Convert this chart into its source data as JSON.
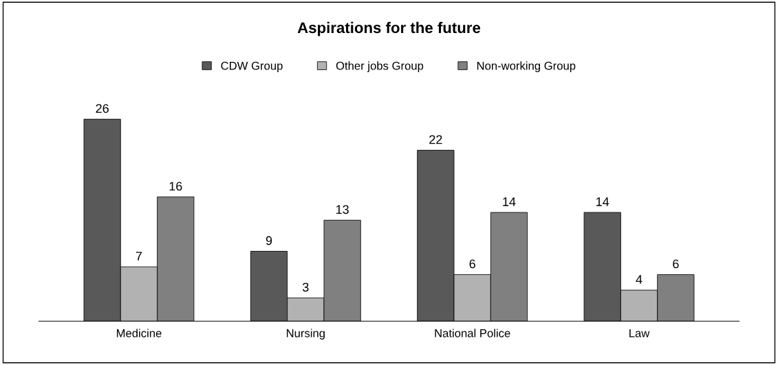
{
  "chart_data": {
    "type": "bar",
    "title": "Aspirations for the future",
    "categories": [
      "Medicine",
      "Nursing",
      "National Police",
      "Law"
    ],
    "series": [
      {
        "name": "CDW Group",
        "color": "#595959",
        "values": [
          26,
          9,
          22,
          14
        ]
      },
      {
        "name": "Other jobs Group",
        "color": "#b2b2b2",
        "values": [
          7,
          3,
          6,
          4
        ]
      },
      {
        "name": "Non-working Group",
        "color": "#808080",
        "values": [
          16,
          13,
          14,
          6
        ]
      }
    ],
    "data_labels": true,
    "legend": "top",
    "grid": false
  }
}
